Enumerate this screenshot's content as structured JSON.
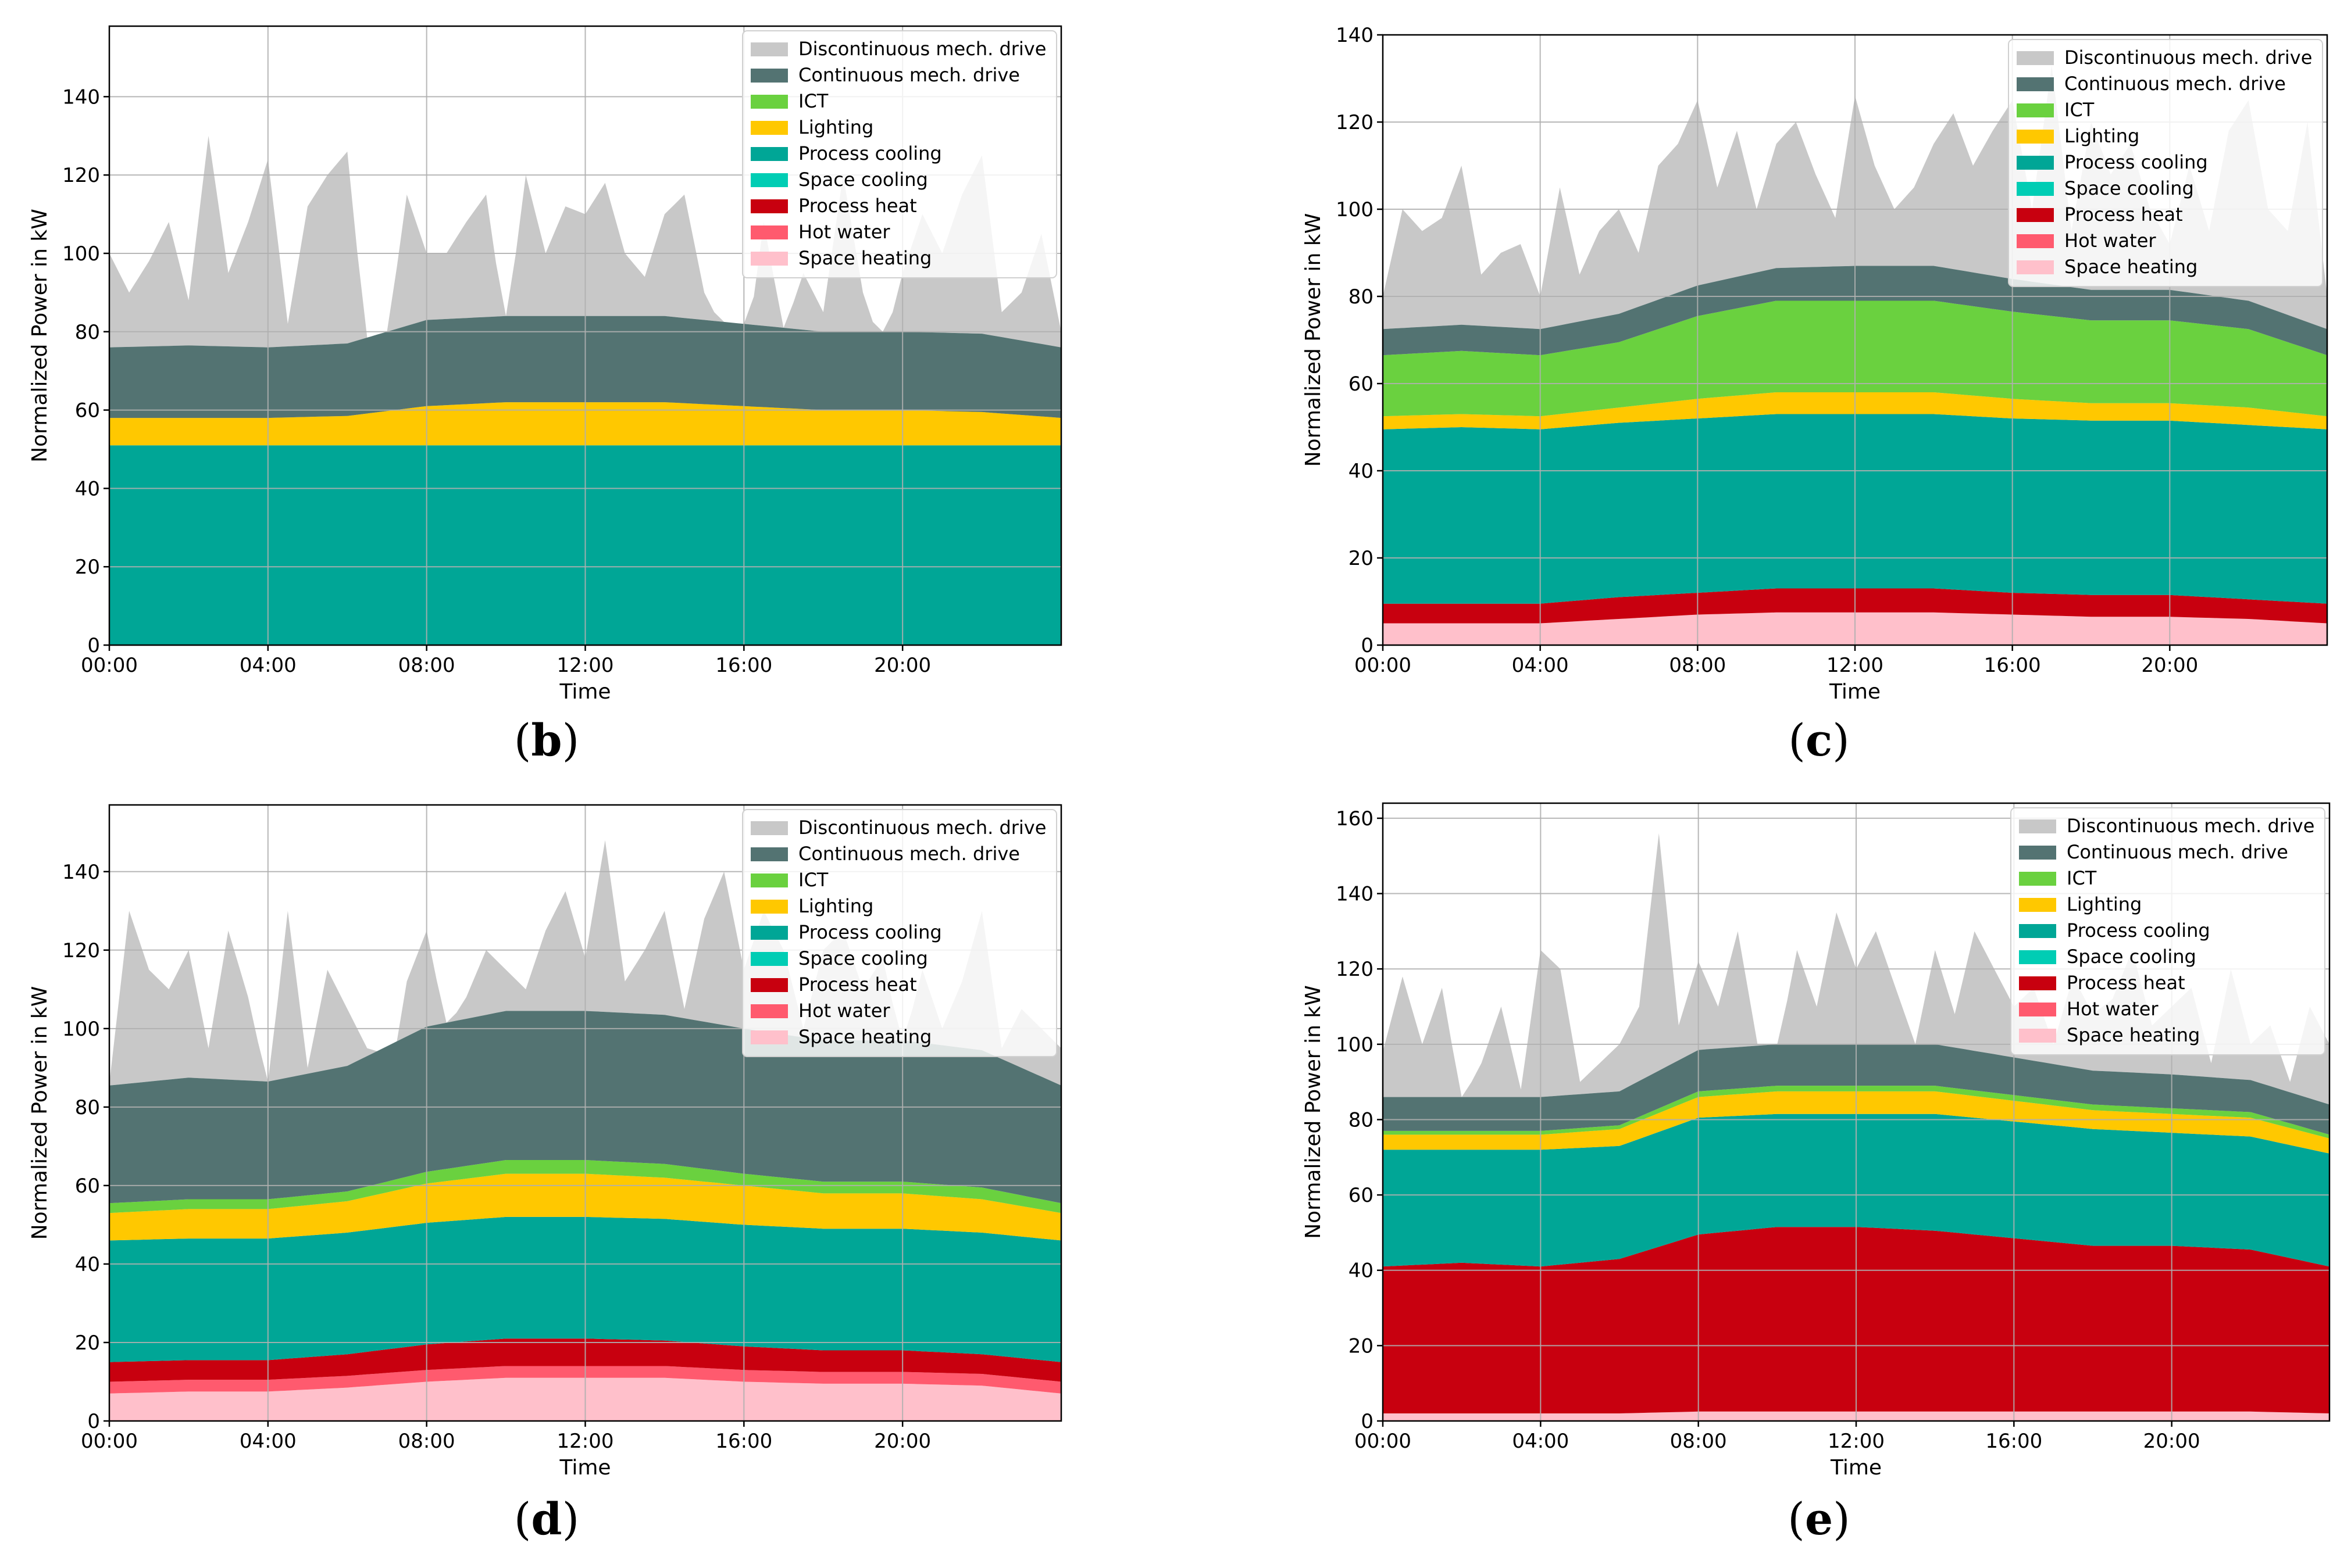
{
  "chart_data": [
    {
      "type": "area",
      "panel_label": "b",
      "xlabel": "Time",
      "ylabel": "Normalized Power in kW",
      "x_tick_labels": [
        "00:00",
        "04:00",
        "08:00",
        "12:00",
        "16:00",
        "20:00"
      ],
      "ylim": [
        0,
        158
      ],
      "y_ticks": [
        0,
        20,
        40,
        60,
        80,
        100,
        120,
        140
      ],
      "grid": true,
      "legend_position": "top-right",
      "x_hours": [
        0,
        2,
        4,
        6,
        8,
        10,
        12,
        14,
        16,
        18,
        20,
        22,
        24
      ],
      "series": [
        {
          "name": "Space heating",
          "color": "#ffc0cb",
          "values": [
            0,
            0,
            0,
            0,
            0,
            0,
            0,
            0,
            0,
            0,
            0,
            0,
            0
          ]
        },
        {
          "name": "Hot water",
          "color": "#ff5a6e",
          "values": [
            0,
            0,
            0,
            0,
            0,
            0,
            0,
            0,
            0,
            0,
            0,
            0,
            0
          ]
        },
        {
          "name": "Process heat",
          "color": "#c8000f",
          "values": [
            0,
            0,
            0,
            0,
            0,
            0,
            0,
            0,
            0,
            0,
            0,
            0,
            0
          ]
        },
        {
          "name": "Space cooling",
          "color": "#00cdb4",
          "values": [
            0,
            0,
            0,
            0,
            0,
            0,
            0,
            0,
            0,
            0,
            0,
            0,
            0
          ]
        },
        {
          "name": "Process cooling",
          "color": "#00a696",
          "values": [
            51,
            51,
            51,
            51,
            51,
            51,
            51,
            51,
            51,
            51,
            51,
            51,
            51
          ]
        },
        {
          "name": "Lighting",
          "color": "#ffc800",
          "values": [
            7,
            7,
            7,
            7.5,
            10,
            11,
            11,
            11,
            10,
            9,
            9,
            8.5,
            7
          ]
        },
        {
          "name": "ICT",
          "color": "#6ad13f",
          "values": [
            0,
            0,
            0,
            0,
            0,
            0,
            0,
            0,
            0,
            0,
            0,
            0,
            0
          ]
        },
        {
          "name": "Continuous mech. drive",
          "color": "#537372",
          "values": [
            18,
            18.5,
            18,
            18.5,
            22,
            22,
            22,
            22,
            21,
            20,
            20,
            20,
            18
          ]
        }
      ],
      "disc_total": [
        100,
        90,
        98,
        108,
        88,
        130,
        95,
        108,
        124,
        82,
        112,
        120,
        126,
        75,
        78,
        115,
        100,
        100,
        108,
        115,
        80,
        120,
        100,
        112,
        110,
        118,
        100,
        94,
        110,
        115,
        90,
        80,
        70,
        108,
        80,
        95,
        85,
        120,
        90,
        75,
        95,
        110,
        100,
        115,
        125,
        85,
        90,
        105,
        80
      ],
      "legend_entries": [
        "Discontinuous mech. drive",
        "Continuous mech. drive",
        "ICT",
        "Lighting",
        "Process cooling",
        "Space cooling",
        "Process heat",
        "Hot water",
        "Space heating"
      ],
      "legend_colors": [
        "#c8c8c8",
        "#537372",
        "#6ad13f",
        "#ffc800",
        "#00a696",
        "#00cdb4",
        "#c8000f",
        "#ff5a6e",
        "#ffc0cb"
      ]
    },
    {
      "type": "area",
      "panel_label": "c",
      "xlabel": "Time",
      "ylabel": "Normalized Power in kW",
      "x_tick_labels": [
        "00:00",
        "04:00",
        "08:00",
        "12:00",
        "16:00",
        "20:00"
      ],
      "ylim": [
        0,
        140
      ],
      "y_ticks": [
        0,
        20,
        40,
        60,
        80,
        100,
        120,
        140
      ],
      "grid": true,
      "legend_position": "top-right",
      "x_hours": [
        0,
        2,
        4,
        6,
        8,
        10,
        12,
        14,
        16,
        18,
        20,
        22,
        24
      ],
      "series": [
        {
          "name": "Space heating",
          "color": "#ffc0cb",
          "values": [
            5,
            5,
            5,
            6,
            7,
            7.5,
            7.5,
            7.5,
            7,
            6.5,
            6.5,
            6,
            5
          ]
        },
        {
          "name": "Hot water",
          "color": "#ff5a6e",
          "values": [
            0,
            0,
            0,
            0,
            0,
            0,
            0,
            0,
            0,
            0,
            0,
            0,
            0
          ]
        },
        {
          "name": "Process heat",
          "color": "#c8000f",
          "values": [
            4.5,
            4.5,
            4.5,
            5,
            5,
            5.5,
            5.5,
            5.5,
            5,
            5,
            5,
            4.5,
            4.5
          ]
        },
        {
          "name": "Space cooling",
          "color": "#00cdb4",
          "values": [
            0,
            0,
            0,
            0,
            0,
            0,
            0,
            0,
            0,
            0,
            0,
            0,
            0
          ]
        },
        {
          "name": "Process cooling",
          "color": "#00a696",
          "values": [
            40,
            40.5,
            40,
            40,
            40,
            40,
            40,
            40,
            40,
            40,
            40,
            40,
            40
          ]
        },
        {
          "name": "Lighting",
          "color": "#ffc800",
          "values": [
            3,
            3,
            3,
            3.5,
            4.5,
            5,
            5,
            5,
            4.5,
            4,
            4,
            4,
            3
          ]
        },
        {
          "name": "ICT",
          "color": "#6ad13f",
          "values": [
            14,
            14.5,
            14,
            15,
            19,
            21,
            21,
            21,
            20,
            19,
            19,
            18,
            14
          ]
        },
        {
          "name": "Continuous mech. drive",
          "color": "#537372",
          "values": [
            6,
            6,
            6,
            6.5,
            7,
            7.5,
            8,
            8,
            7.5,
            7,
            7,
            6.5,
            6
          ]
        }
      ],
      "disc_total": [
        80,
        100,
        95,
        98,
        110,
        85,
        90,
        92,
        80,
        105,
        85,
        95,
        100,
        90,
        110,
        115,
        125,
        105,
        118,
        100,
        115,
        120,
        108,
        98,
        126,
        110,
        100,
        105,
        115,
        122,
        110,
        118,
        125,
        100,
        133,
        95,
        120,
        108,
        115,
        100,
        92,
        110,
        95,
        118,
        125,
        100,
        95,
        120,
        80
      ],
      "legend_entries": [
        "Discontinuous mech. drive",
        "Continuous mech. drive",
        "ICT",
        "Lighting",
        "Process cooling",
        "Space cooling",
        "Process heat",
        "Hot water",
        "Space heating"
      ],
      "legend_colors": [
        "#c8c8c8",
        "#537372",
        "#6ad13f",
        "#ffc800",
        "#00a696",
        "#00cdb4",
        "#c8000f",
        "#ff5a6e",
        "#ffc0cb"
      ]
    },
    {
      "type": "area",
      "panel_label": "d",
      "xlabel": "Time",
      "ylabel": "Normalized Power in kW",
      "x_tick_labels": [
        "00:00",
        "04:00",
        "08:00",
        "12:00",
        "16:00",
        "20:00"
      ],
      "ylim": [
        0,
        157
      ],
      "y_ticks": [
        0,
        20,
        40,
        60,
        80,
        100,
        120,
        140
      ],
      "grid": true,
      "legend_position": "top-right",
      "x_hours": [
        0,
        2,
        4,
        6,
        8,
        10,
        12,
        14,
        16,
        18,
        20,
        22,
        24
      ],
      "series": [
        {
          "name": "Space heating",
          "color": "#ffc0cb",
          "values": [
            7,
            7.5,
            7.5,
            8.5,
            10,
            11,
            11,
            11,
            10,
            9.5,
            9.5,
            9,
            7
          ]
        },
        {
          "name": "Hot water",
          "color": "#ff5a6e",
          "values": [
            3,
            3,
            3,
            3,
            3,
            3,
            3,
            3,
            3,
            3,
            3,
            3,
            3
          ]
        },
        {
          "name": "Process heat",
          "color": "#c8000f",
          "values": [
            5,
            5,
            5,
            5.5,
            6.5,
            7,
            7,
            6.5,
            6,
            5.5,
            5.5,
            5,
            5
          ]
        },
        {
          "name": "Space cooling",
          "color": "#00cdb4",
          "values": [
            0,
            0,
            0,
            0,
            0,
            0,
            0,
            0,
            0,
            0,
            0,
            0,
            0
          ]
        },
        {
          "name": "Process cooling",
          "color": "#00a696",
          "values": [
            31,
            31,
            31,
            31,
            31,
            31,
            31,
            31,
            31,
            31,
            31,
            31,
            31
          ]
        },
        {
          "name": "Lighting",
          "color": "#ffc800",
          "values": [
            7,
            7.5,
            7.5,
            8,
            10,
            11,
            11,
            10.5,
            10,
            9,
            9,
            8.5,
            7
          ]
        },
        {
          "name": "ICT",
          "color": "#6ad13f",
          "values": [
            2.5,
            2.5,
            2.5,
            2.5,
            3,
            3.5,
            3.5,
            3.5,
            3,
            3,
            3,
            3,
            2.5
          ]
        },
        {
          "name": "Continuous mech. drive",
          "color": "#537372",
          "values": [
            30,
            31,
            30,
            32,
            37,
            38,
            38,
            38,
            37,
            36,
            36,
            35,
            30
          ]
        }
      ],
      "disc_total": [
        86,
        130,
        115,
        110,
        120,
        95,
        125,
        108,
        85,
        130,
        90,
        115,
        105,
        95,
        75,
        112,
        125,
        100,
        108,
        120,
        115,
        110,
        125,
        135,
        118,
        148,
        112,
        120,
        130,
        105,
        128,
        140,
        115,
        130,
        120,
        100,
        120,
        125,
        110,
        118,
        95,
        115,
        100,
        112,
        130,
        95,
        105,
        100,
        95
      ],
      "legend_entries": [
        "Discontinuous mech. drive",
        "Continuous mech. drive",
        "ICT",
        "Lighting",
        "Process cooling",
        "Space cooling",
        "Process heat",
        "Hot water",
        "Space heating"
      ],
      "legend_colors": [
        "#c8c8c8",
        "#537372",
        "#6ad13f",
        "#ffc800",
        "#00a696",
        "#00cdb4",
        "#c8000f",
        "#ff5a6e",
        "#ffc0cb"
      ]
    },
    {
      "type": "area",
      "panel_label": "e",
      "xlabel": "Time",
      "ylabel": "Normalized Power in kW",
      "x_tick_labels": [
        "00:00",
        "04:00",
        "08:00",
        "12:00",
        "16:00",
        "20:00"
      ],
      "ylim": [
        0,
        164
      ],
      "y_ticks": [
        0,
        20,
        40,
        60,
        80,
        100,
        120,
        140,
        160
      ],
      "grid": true,
      "legend_position": "top-right",
      "x_hours": [
        0,
        2,
        4,
        6,
        8,
        10,
        12,
        14,
        16,
        18,
        20,
        22,
        24
      ],
      "series": [
        {
          "name": "Space heating",
          "color": "#ffc0cb",
          "values": [
            2,
            2,
            2,
            2,
            2.5,
            2.5,
            2.5,
            2.5,
            2.5,
            2.5,
            2.5,
            2.5,
            2
          ]
        },
        {
          "name": "Hot water",
          "color": "#ff5a6e",
          "values": [
            0,
            0,
            0,
            0,
            0,
            0,
            0,
            0,
            0,
            0,
            0,
            0,
            0
          ]
        },
        {
          "name": "Process heat",
          "color": "#c8000f",
          "values": [
            39,
            40,
            39,
            41,
            47,
            49,
            49,
            48,
            46,
            44,
            44,
            43,
            39
          ]
        },
        {
          "name": "Space cooling",
          "color": "#00cdb4",
          "values": [
            0,
            0,
            0,
            0,
            0,
            0,
            0,
            0,
            0,
            0,
            0,
            0,
            0
          ]
        },
        {
          "name": "Process cooling",
          "color": "#00a696",
          "values": [
            31,
            30,
            31,
            30,
            31,
            30,
            30,
            31,
            31,
            31,
            30,
            30,
            30
          ]
        },
        {
          "name": "Lighting",
          "color": "#ffc800",
          "values": [
            4,
            4,
            4,
            4.5,
            5.5,
            6,
            6,
            6,
            5.5,
            5,
            5,
            5,
            4
          ]
        },
        {
          "name": "ICT",
          "color": "#6ad13f",
          "values": [
            1,
            1,
            1,
            1,
            1.5,
            1.5,
            1.5,
            1.5,
            1.5,
            1.5,
            1.5,
            1.5,
            1
          ]
        },
        {
          "name": "Continuous mech. drive",
          "color": "#537372",
          "values": [
            9,
            9,
            9,
            9,
            11,
            11,
            11,
            11,
            10,
            9,
            9,
            8.5,
            8
          ]
        }
      ],
      "disc_total": [
        98,
        118,
        100,
        115,
        85,
        95,
        110,
        88,
        125,
        120,
        90,
        95,
        100,
        110,
        156,
        105,
        122,
        110,
        130,
        100,
        98,
        125,
        110,
        135,
        120,
        130,
        115,
        100,
        125,
        108,
        130,
        120,
        110,
        115,
        100,
        118,
        108,
        112,
        125,
        105,
        110,
        115,
        95,
        120,
        100,
        105,
        90,
        110,
        100
      ],
      "legend_entries": [
        "Discontinuous mech. drive",
        "Continuous mech. drive",
        "ICT",
        "Lighting",
        "Process cooling",
        "Space cooling",
        "Process heat",
        "Hot water",
        "Space heating"
      ],
      "legend_colors": [
        "#c8c8c8",
        "#537372",
        "#6ad13f",
        "#ffc800",
        "#00a696",
        "#00cdb4",
        "#c8000f",
        "#ff5a6e",
        "#ffc0cb"
      ]
    }
  ]
}
